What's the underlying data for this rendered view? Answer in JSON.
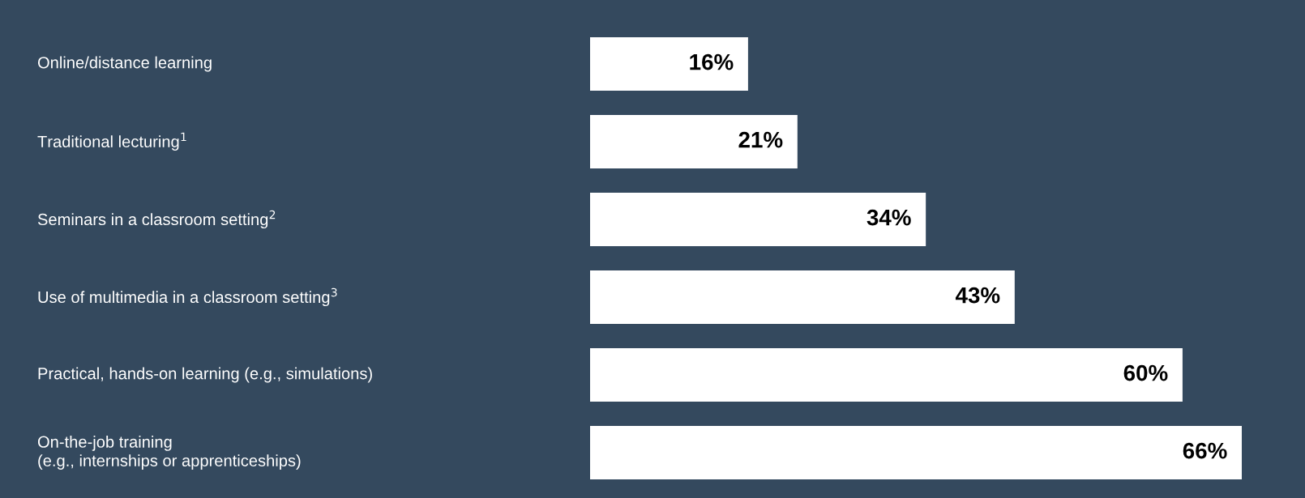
{
  "chart_data": {
    "type": "bar",
    "orientation": "horizontal",
    "categories": [
      "Online/distance learning",
      "Traditional lecturing$^{1}$",
      "Seminars in a classroom setting$^{2}$",
      "Use of multimedia in a classroom setting$^{3}$",
      "Practical, hands-on learning (e.g., simulations)",
      "On-the-job training\n(e.g., internships or apprenticeships)"
    ],
    "series": [
      {
        "color": "#ffffff",
        "values": [
          16,
          21,
          34,
          43,
          60,
          66
        ],
        "value_labels": [
          "16%",
          "21%",
          "34%",
          "43%",
          "60%",
          "66%"
        ]
      }
    ]
  }
}
